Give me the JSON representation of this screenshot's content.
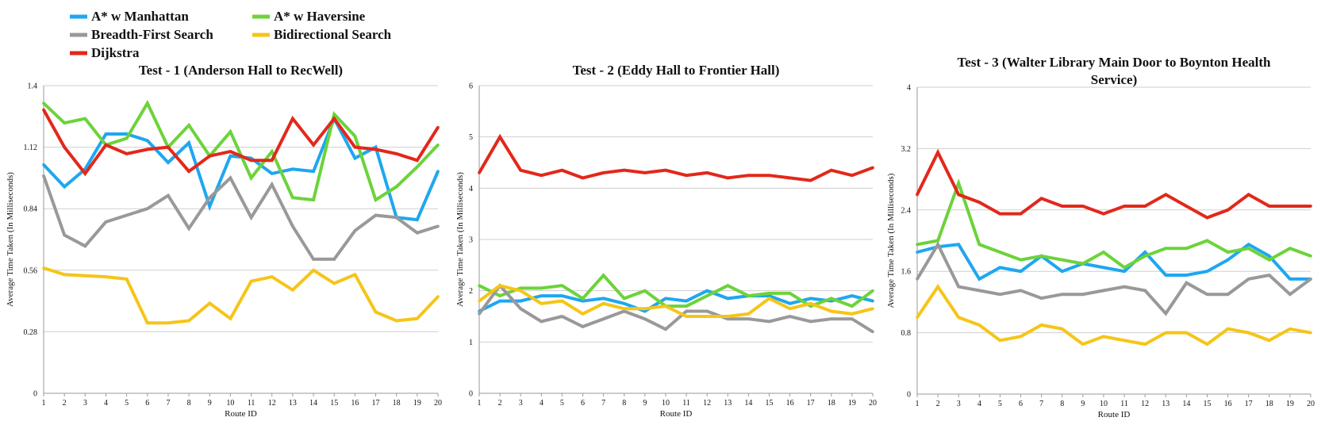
{
  "legend": {
    "items": [
      {
        "name": "A* w Manhattan",
        "color": "#1ea7f0"
      },
      {
        "name": "A* w Haversine",
        "color": "#6cd33a"
      },
      {
        "name": "Breadth-First Search",
        "color": "#999999"
      },
      {
        "name": "Bidirectional Search",
        "color": "#f5c518"
      },
      {
        "name": "Dijkstra",
        "color": "#e2281b"
      }
    ]
  },
  "chart_data": [
    {
      "type": "line",
      "title": "Test - 1 (Anderson Hall to RecWell)",
      "xlabel": "Route ID",
      "ylabel": "Average Time Taken (In Milliseconds)",
      "x": [
        1,
        2,
        3,
        4,
        5,
        6,
        7,
        8,
        9,
        10,
        11,
        12,
        13,
        14,
        15,
        16,
        17,
        18,
        19,
        20
      ],
      "ylim": [
        0,
        1.4
      ],
      "yticks": [
        "0",
        "0.28",
        "0.56",
        "0.84",
        "1.12",
        "1.4"
      ],
      "grid": true,
      "series": [
        {
          "name": "A* w Manhattan",
          "values": [
            1.04,
            0.94,
            1.02,
            1.18,
            1.18,
            1.15,
            1.05,
            1.14,
            0.85,
            1.08,
            1.07,
            1.0,
            1.02,
            1.01,
            1.25,
            1.07,
            1.12,
            0.8,
            0.79,
            1.01
          ]
        },
        {
          "name": "A* w Haversine",
          "values": [
            1.32,
            1.23,
            1.25,
            1.13,
            1.16,
            1.32,
            1.12,
            1.22,
            1.08,
            1.19,
            0.98,
            1.1,
            0.89,
            0.88,
            1.27,
            1.17,
            0.88,
            0.94,
            1.03,
            1.13
          ]
        },
        {
          "name": "Breadth-First Search",
          "values": [
            0.99,
            0.72,
            0.67,
            0.78,
            0.81,
            0.84,
            0.9,
            0.75,
            0.89,
            0.98,
            0.8,
            0.95,
            0.76,
            0.61,
            0.61,
            0.74,
            0.81,
            0.8,
            0.73,
            0.76
          ]
        },
        {
          "name": "Bidirectional Search",
          "values": [
            0.57,
            0.54,
            0.535,
            0.53,
            0.52,
            0.32,
            0.32,
            0.33,
            0.41,
            0.34,
            0.51,
            0.53,
            0.47,
            0.56,
            0.5,
            0.54,
            0.37,
            0.33,
            0.34,
            0.44
          ]
        },
        {
          "name": "Dijkstra",
          "values": [
            1.29,
            1.12,
            1.0,
            1.13,
            1.09,
            1.11,
            1.12,
            1.01,
            1.08,
            1.1,
            1.06,
            1.06,
            1.25,
            1.13,
            1.25,
            1.12,
            1.11,
            1.09,
            1.06,
            1.21
          ]
        }
      ]
    },
    {
      "type": "line",
      "title": "Test - 2 (Eddy Hall to Frontier Hall)",
      "xlabel": "Route ID",
      "ylabel": "Average Time Taken (In Milliseconds)",
      "x": [
        1,
        2,
        3,
        4,
        5,
        6,
        7,
        8,
        9,
        10,
        11,
        12,
        13,
        14,
        15,
        16,
        17,
        18,
        19,
        20
      ],
      "ylim": [
        0,
        6
      ],
      "yticks": [
        "0",
        "1",
        "2",
        "3",
        "4",
        "5",
        "6"
      ],
      "grid": true,
      "series": [
        {
          "name": "A* w Manhattan",
          "values": [
            1.6,
            1.8,
            1.8,
            1.9,
            1.9,
            1.8,
            1.85,
            1.75,
            1.6,
            1.85,
            1.8,
            2.0,
            1.85,
            1.9,
            1.9,
            1.75,
            1.85,
            1.8,
            1.9,
            1.8
          ]
        },
        {
          "name": "A* w Haversine",
          "values": [
            2.1,
            1.9,
            2.05,
            2.05,
            2.1,
            1.85,
            2.3,
            1.85,
            2.0,
            1.7,
            1.7,
            1.9,
            2.1,
            1.9,
            1.95,
            1.95,
            1.7,
            1.85,
            1.7,
            2.0
          ]
        },
        {
          "name": "Breadth-First Search",
          "values": [
            1.55,
            2.1,
            1.65,
            1.4,
            1.5,
            1.3,
            1.45,
            1.6,
            1.45,
            1.25,
            1.6,
            1.6,
            1.45,
            1.45,
            1.4,
            1.5,
            1.4,
            1.45,
            1.45,
            1.2
          ]
        },
        {
          "name": "Bidirectional Search",
          "values": [
            1.8,
            2.1,
            2.0,
            1.75,
            1.8,
            1.55,
            1.75,
            1.65,
            1.65,
            1.7,
            1.5,
            1.5,
            1.5,
            1.55,
            1.85,
            1.65,
            1.75,
            1.6,
            1.55,
            1.65
          ]
        },
        {
          "name": "Dijkstra",
          "values": [
            4.3,
            5.0,
            4.35,
            4.25,
            4.35,
            4.2,
            4.3,
            4.35,
            4.3,
            4.35,
            4.25,
            4.3,
            4.2,
            4.25,
            4.25,
            4.2,
            4.15,
            4.35,
            4.25,
            4.4
          ]
        }
      ]
    },
    {
      "type": "line",
      "title": "Test - 3 (Walter Library Main Door to Boynton Health Service)",
      "title_lines": [
        "Test - 3 (Walter Library Main Door to Boynton Health",
        "Service)"
      ],
      "xlabel": "Route ID",
      "ylabel": "Average Time Taken (In Milliseconds)",
      "x": [
        1,
        2,
        3,
        4,
        5,
        6,
        7,
        8,
        9,
        10,
        11,
        12,
        13,
        14,
        15,
        16,
        17,
        18,
        19,
        20
      ],
      "ylim": [
        0,
        4
      ],
      "yticks": [
        "0",
        "0.8",
        "1.6",
        "2.4",
        "3.2",
        "4"
      ],
      "grid": true,
      "series": [
        {
          "name": "A* w Manhattan",
          "values": [
            1.85,
            1.92,
            1.95,
            1.5,
            1.65,
            1.6,
            1.8,
            1.6,
            1.7,
            1.65,
            1.6,
            1.85,
            1.55,
            1.55,
            1.6,
            1.75,
            1.95,
            1.8,
            1.5,
            1.5
          ]
        },
        {
          "name": "A* w Haversine",
          "values": [
            1.95,
            2.0,
            2.75,
            1.95,
            1.85,
            1.75,
            1.8,
            1.75,
            1.7,
            1.85,
            1.65,
            1.8,
            1.9,
            1.9,
            2.0,
            1.85,
            1.9,
            1.75,
            1.9,
            1.8
          ]
        },
        {
          "name": "Breadth-First Search",
          "values": [
            1.5,
            1.95,
            1.4,
            1.35,
            1.3,
            1.35,
            1.25,
            1.3,
            1.3,
            1.35,
            1.4,
            1.35,
            1.05,
            1.45,
            1.3,
            1.3,
            1.5,
            1.55,
            1.3,
            1.5
          ]
        },
        {
          "name": "Bidirectional Search",
          "values": [
            1.0,
            1.4,
            1.0,
            0.9,
            0.7,
            0.75,
            0.9,
            0.85,
            0.65,
            0.75,
            0.7,
            0.65,
            0.8,
            0.8,
            0.65,
            0.85,
            0.8,
            0.7,
            0.85,
            0.8
          ]
        },
        {
          "name": "Dijkstra",
          "values": [
            2.6,
            3.15,
            2.6,
            2.5,
            2.35,
            2.35,
            2.55,
            2.45,
            2.45,
            2.35,
            2.45,
            2.45,
            2.6,
            2.45,
            2.3,
            2.4,
            2.6,
            2.45,
            2.45,
            2.45
          ]
        }
      ]
    }
  ]
}
